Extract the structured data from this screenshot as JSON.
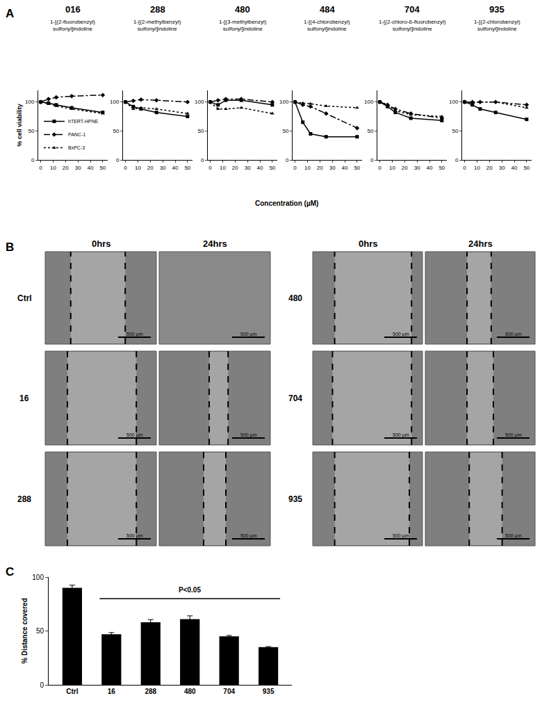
{
  "chart_data": [
    {
      "type": "line",
      "title": "016",
      "subtitle": [
        "1-[(2-fluorobenzyl)",
        "sulfonyl]indoline"
      ],
      "ylabel": "% cell viability",
      "legend": "lower left",
      "x": [
        0,
        6.25,
        12.5,
        25,
        50
      ],
      "xlim": [
        -2,
        54
      ],
      "xticks": [
        0,
        10,
        20,
        30,
        40,
        50
      ],
      "ylim": [
        0,
        120
      ],
      "yticks": [
        0,
        50,
        100
      ],
      "series": [
        {
          "name": "hTERT-HPNE",
          "color": "#000000",
          "marker": "square",
          "line_style": "solid",
          "values": [
            100,
            98,
            95,
            90,
            82
          ]
        },
        {
          "name": "PANC-1",
          "color": "#000000",
          "marker": "diamond",
          "line_style": "dashdot",
          "values": [
            100,
            105,
            108,
            110,
            112
          ]
        },
        {
          "name": "BxPC-3",
          "color": "#000000",
          "marker": "triangle",
          "line_style": "dot",
          "values": [
            100,
            97,
            93,
            88,
            80
          ]
        }
      ]
    },
    {
      "type": "line",
      "title": "288",
      "subtitle": [
        "1-[(2-methylbenzyl)",
        "sulfonyl]indoline"
      ],
      "x": [
        0,
        6.25,
        12.5,
        25,
        50
      ],
      "xlim": [
        -2,
        54
      ],
      "xticks": [
        0,
        10,
        20,
        30,
        40,
        50
      ],
      "ylim": [
        0,
        120
      ],
      "yticks": [
        0,
        50,
        100
      ],
      "series": [
        {
          "name": "hTERT-HPNE",
          "color": "#000000",
          "marker": "square",
          "line_style": "solid",
          "values": [
            100,
            92,
            88,
            82,
            75
          ]
        },
        {
          "name": "PANC-1",
          "color": "#000000",
          "marker": "diamond",
          "line_style": "dashdot",
          "values": [
            100,
            102,
            104,
            103,
            100
          ]
        },
        {
          "name": "BxPC-3",
          "color": "#000000",
          "marker": "triangle",
          "line_style": "dot",
          "values": [
            100,
            88,
            90,
            88,
            80
          ]
        }
      ]
    },
    {
      "type": "line",
      "title": "480",
      "subtitle": [
        "1-[(3-methylbenzyl)",
        "sulfonyl]indoline"
      ],
      "x": [
        0,
        6.25,
        12.5,
        25,
        50
      ],
      "xlim": [
        -2,
        54
      ],
      "xticks": [
        0,
        10,
        20,
        30,
        40,
        50
      ],
      "ylim": [
        0,
        120
      ],
      "yticks": [
        0,
        50,
        100
      ],
      "series": [
        {
          "name": "hTERT-HPNE",
          "color": "#000000",
          "marker": "square",
          "line_style": "solid",
          "values": [
            100,
            95,
            103,
            103,
            95
          ]
        },
        {
          "name": "PANC-1",
          "color": "#000000",
          "marker": "diamond",
          "line_style": "dashdot",
          "values": [
            100,
            103,
            105,
            105,
            100
          ]
        },
        {
          "name": "BxPC-3",
          "color": "#000000",
          "marker": "triangle",
          "line_style": "dot",
          "values": [
            100,
            88,
            88,
            90,
            80
          ]
        }
      ]
    },
    {
      "type": "line",
      "title": "484",
      "subtitle": [
        "1-[(4-chlorobenzyl)",
        "sulfonyl]indoline"
      ],
      "x": [
        0,
        6.25,
        12.5,
        25,
        50
      ],
      "xlim": [
        -2,
        54
      ],
      "xticks": [
        0,
        10,
        20,
        30,
        40,
        50
      ],
      "ylim": [
        0,
        120
      ],
      "yticks": [
        0,
        50,
        100
      ],
      "series": [
        {
          "name": "hTERT-HPNE",
          "color": "#000000",
          "marker": "square",
          "line_style": "solid",
          "values": [
            100,
            65,
            45,
            40,
            40
          ]
        },
        {
          "name": "PANC-1",
          "color": "#000000",
          "marker": "diamond",
          "line_style": "dashdot",
          "values": [
            100,
            95,
            92,
            80,
            55
          ]
        },
        {
          "name": "BxPC-3",
          "color": "#000000",
          "marker": "triangle",
          "line_style": "dot",
          "values": [
            100,
            98,
            97,
            93,
            90
          ]
        }
      ]
    },
    {
      "type": "line",
      "title": "704",
      "subtitle": [
        "1-[(2-chloro-6-fluorobenzyl)",
        "sulfonyl]indoline"
      ],
      "x": [
        0,
        6.25,
        12.5,
        25,
        50
      ],
      "xlim": [
        -2,
        54
      ],
      "xticks": [
        0,
        10,
        20,
        30,
        40,
        50
      ],
      "ylim": [
        0,
        120
      ],
      "yticks": [
        0,
        50,
        100
      ],
      "series": [
        {
          "name": "hTERT-HPNE",
          "color": "#000000",
          "marker": "square",
          "line_style": "solid",
          "values": [
            100,
            92,
            82,
            72,
            68
          ]
        },
        {
          "name": "PANC-1",
          "color": "#000000",
          "marker": "diamond",
          "line_style": "dashdot",
          "values": [
            100,
            95,
            88,
            80,
            72
          ]
        },
        {
          "name": "BxPC-3",
          "color": "#000000",
          "marker": "triangle",
          "line_style": "dot",
          "values": [
            100,
            95,
            85,
            78,
            75
          ]
        }
      ]
    },
    {
      "type": "line",
      "title": "935",
      "subtitle": [
        "1-[(2-chlorobenzyl)",
        "sulfonyl]indoline"
      ],
      "x": [
        0,
        6.25,
        12.5,
        25,
        50
      ],
      "xlim": [
        -2,
        54
      ],
      "xticks": [
        0,
        10,
        20,
        30,
        40,
        50
      ],
      "ylim": [
        0,
        120
      ],
      "yticks": [
        0,
        50,
        100
      ],
      "series": [
        {
          "name": "hTERT-HPNE",
          "color": "#000000",
          "marker": "square",
          "line_style": "solid",
          "values": [
            100,
            95,
            88,
            82,
            70
          ]
        },
        {
          "name": "PANC-1",
          "color": "#000000",
          "marker": "diamond",
          "line_style": "dashdot",
          "values": [
            100,
            100,
            100,
            100,
            95
          ]
        },
        {
          "name": "BxPC-3",
          "color": "#000000",
          "marker": "triangle",
          "line_style": "dot",
          "values": [
            100,
            98,
            100,
            100,
            90
          ]
        }
      ]
    },
    {
      "type": "bar",
      "ylabel": "% Distance covered",
      "categories": [
        "Ctrl",
        "16",
        "288",
        "480",
        "704",
        "935"
      ],
      "values": [
        90,
        47,
        58,
        61,
        45,
        35
      ],
      "errors": [
        2.5,
        1.5,
        2.5,
        3,
        0.8,
        0.5
      ],
      "color": "#000000",
      "ylim": [
        0,
        100
      ],
      "yticks": [
        0,
        50,
        100
      ],
      "annotations": [
        {
          "text": "P<0.05",
          "from": "16",
          "to": "935"
        }
      ]
    }
  ],
  "panel_a": {
    "label": "A",
    "xlabel": "Concentration (µM)"
  },
  "panel_b": {
    "label": "B",
    "columns": [
      "0hrs",
      "24hrs"
    ],
    "rows": [
      "Ctrl",
      "16",
      "288",
      "480",
      "704",
      "935"
    ],
    "scale_bar": "500 µm"
  },
  "panel_c": {
    "label": "C"
  }
}
